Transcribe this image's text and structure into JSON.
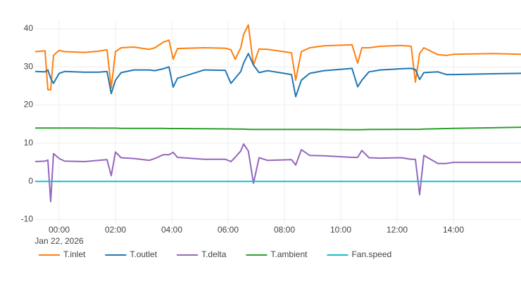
{
  "chart_data": {
    "type": "line",
    "x": [
      "2026-01-21 23:09",
      "2026-01-21 23:30",
      "2026-01-21 23:36",
      "2026-01-21 23:42",
      "2026-01-21 23:48",
      "2026-01-22 00:00",
      "2026-01-22 00:12",
      "2026-01-22 00:54",
      "2026-01-22 01:24",
      "2026-01-22 01:42",
      "2026-01-22 01:51",
      "2026-01-22 02:00",
      "2026-01-22 02:12",
      "2026-01-22 02:39",
      "2026-01-22 03:12",
      "2026-01-22 03:24",
      "2026-01-22 03:42",
      "2026-01-22 03:54",
      "2026-01-22 04:03",
      "2026-01-22 04:12",
      "2026-01-22 05:09",
      "2026-01-22 05:54",
      "2026-01-22 06:06",
      "2026-01-22 06:15",
      "2026-01-22 06:27",
      "2026-01-22 06:33",
      "2026-01-22 06:43",
      "2026-01-22 06:54",
      "2026-01-22 07:06",
      "2026-01-22 07:24",
      "2026-01-22 08:15",
      "2026-01-22 08:24",
      "2026-01-22 08:36",
      "2026-01-22 08:54",
      "2026-01-22 09:24",
      "2026-01-22 10:24",
      "2026-01-22 10:36",
      "2026-01-22 10:45",
      "2026-01-22 11:00",
      "2026-01-22 11:24",
      "2026-01-22 12:09",
      "2026-01-22 12:30",
      "2026-01-22 12:39",
      "2026-01-22 12:48",
      "2026-01-22 12:57",
      "2026-01-22 13:27",
      "2026-01-22 13:45",
      "2026-01-22 14:00",
      "2026-01-22 15:24",
      "2026-01-22 16:24"
    ],
    "series": [
      {
        "name": "T.inlet",
        "color": "#ff7f0e",
        "values": [
          34,
          34.2,
          24,
          24,
          33,
          34.3,
          34,
          33.8,
          34.1,
          34.5,
          24.5,
          34,
          35,
          35.2,
          34.6,
          35,
          36.5,
          37,
          32,
          34.8,
          35,
          34.9,
          34.5,
          32,
          35,
          38.5,
          41,
          30.5,
          34.7,
          34.6,
          33.7,
          26.5,
          34,
          35,
          35.5,
          35.8,
          31,
          35,
          35,
          35.4,
          35.6,
          35.4,
          26,
          33.5,
          35,
          33.2,
          33,
          33.3,
          33.5,
          33.3
        ]
      },
      {
        "name": "T.outlet",
        "color": "#1f77b4",
        "values": [
          28.8,
          28.7,
          29.2,
          27,
          25.7,
          28.3,
          28.8,
          28.6,
          28.6,
          28.8,
          23,
          26.5,
          28.5,
          29.2,
          29.2,
          29,
          29.5,
          30,
          24.7,
          27,
          29.2,
          29.1,
          25.7,
          27,
          28.8,
          31,
          33.5,
          30.5,
          28.5,
          29,
          28,
          22.2,
          26.5,
          28.3,
          29,
          29.6,
          24.8,
          26.5,
          28.7,
          29.2,
          29.5,
          29.6,
          29.3,
          26.7,
          28.5,
          28.7,
          28,
          28,
          28.2,
          28.3
        ]
      },
      {
        "name": "T.delta",
        "color": "#9467bd",
        "values": [
          5.2,
          5.3,
          5.6,
          -5.3,
          7.3,
          6,
          5.3,
          5.2,
          5.5,
          5.7,
          1.5,
          7.7,
          6.2,
          6,
          5.5,
          6,
          7,
          7,
          7.6,
          6.3,
          5.8,
          5.8,
          5.2,
          6.3,
          8,
          9.8,
          8,
          -0.5,
          6.2,
          5.5,
          5.7,
          4.3,
          8.3,
          6.8,
          6.7,
          6.3,
          6.3,
          8.1,
          6.2,
          6.1,
          6.2,
          5.8,
          5.8,
          -3.5,
          6.8,
          4.7,
          4.7,
          5,
          5,
          5
        ]
      },
      {
        "name": "T.ambient",
        "color": "#2ca02c",
        "values": [
          14,
          14,
          14,
          14,
          14,
          14,
          14,
          14,
          13.95,
          13.95,
          13.95,
          13.95,
          13.9,
          13.9,
          13.9,
          13.9,
          13.9,
          13.85,
          13.85,
          13.85,
          13.8,
          13.75,
          13.75,
          13.7,
          13.7,
          13.7,
          13.65,
          13.6,
          13.6,
          13.6,
          13.6,
          13.6,
          13.6,
          13.6,
          13.6,
          13.55,
          13.55,
          13.55,
          13.6,
          13.6,
          13.65,
          13.65,
          13.65,
          13.65,
          13.7,
          13.8,
          13.85,
          13.9,
          14.05,
          14.2
        ]
      },
      {
        "name": "Fan.speed",
        "color": "#17becf",
        "values": [
          0,
          0,
          0,
          0,
          0,
          0,
          0,
          0,
          0,
          0,
          0,
          0,
          0,
          0,
          0,
          0,
          0,
          0,
          0,
          0,
          0,
          0,
          0,
          0,
          0,
          0,
          0,
          0,
          0,
          0,
          0,
          0,
          0,
          0,
          0,
          0,
          0,
          0,
          0,
          0,
          0,
          0,
          0,
          0,
          0,
          0,
          0,
          0,
          0,
          0
        ]
      }
    ],
    "xlim": [
      "2026-01-21 23:09",
      "2026-01-22 16:24"
    ],
    "xticks": [
      {
        "value": "2026-01-22 00:00",
        "label": "00:00"
      },
      {
        "value": "2026-01-22 02:00",
        "label": "02:00"
      },
      {
        "value": "2026-01-22 04:00",
        "label": "04:00"
      },
      {
        "value": "2026-01-22 06:00",
        "label": "06:00"
      },
      {
        "value": "2026-01-22 08:00",
        "label": "08:00"
      },
      {
        "value": "2026-01-22 10:00",
        "label": "10:00"
      },
      {
        "value": "2026-01-22 12:00",
        "label": "12:00"
      },
      {
        "value": "2026-01-22 14:00",
        "label": "14:00"
      }
    ],
    "x_date_label": "Jan 22, 2026",
    "ylim": [
      -11,
      42
    ],
    "yticks": [
      -10,
      0,
      10,
      20,
      30,
      40
    ],
    "grid": true,
    "legend": "bottom"
  }
}
